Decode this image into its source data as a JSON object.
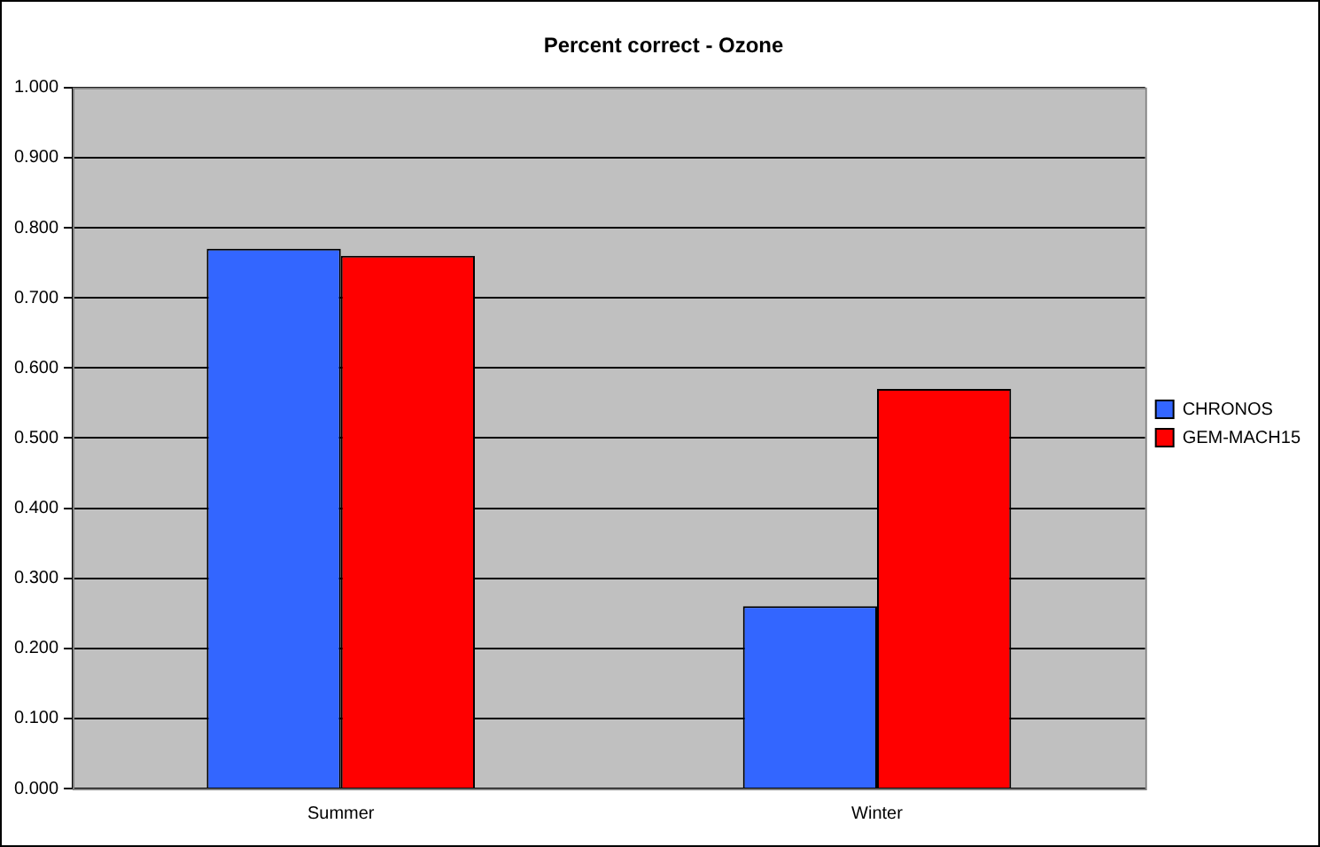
{
  "chart_data": {
    "type": "bar",
    "title": "Percent correct - Ozone",
    "categories": [
      "Summer",
      "Winter"
    ],
    "series": [
      {
        "name": "CHRONOS",
        "color": "#3366ff",
        "values": [
          0.77,
          0.26
        ]
      },
      {
        "name": "GEM-MACH15",
        "color": "#ff0000",
        "values": [
          0.76,
          0.57
        ]
      }
    ],
    "ylim": [
      0,
      1
    ],
    "yticks": [
      {
        "value": 0,
        "label": "0.000"
      },
      {
        "value": 0.1,
        "label": "0.100"
      },
      {
        "value": 0.2,
        "label": "0.200"
      },
      {
        "value": 0.3,
        "label": "0.300"
      },
      {
        "value": 0.4,
        "label": "0.400"
      },
      {
        "value": 0.5,
        "label": "0.500"
      },
      {
        "value": 0.6,
        "label": "0.600"
      },
      {
        "value": 0.7,
        "label": "0.700"
      },
      {
        "value": 0.8,
        "label": "0.800"
      },
      {
        "value": 0.9,
        "label": "0.900"
      },
      {
        "value": 1,
        "label": "1.000"
      }
    ],
    "grid": "y",
    "legend": "right"
  }
}
